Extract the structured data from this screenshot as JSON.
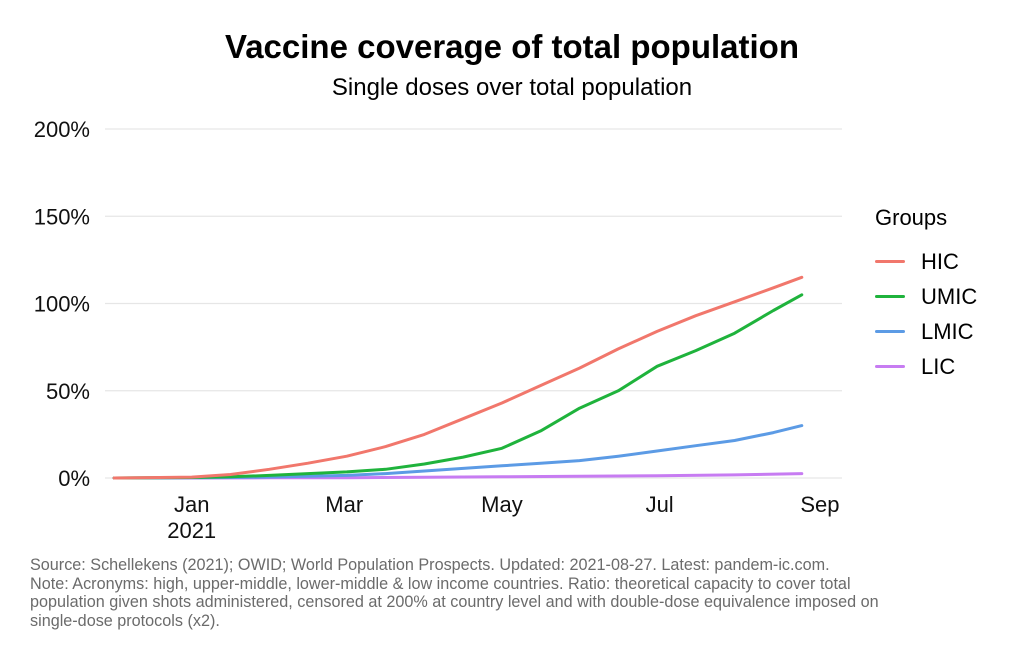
{
  "chart_data": {
    "type": "line",
    "title": "Vaccine coverage of total population",
    "subtitle": "Single doses over total population",
    "xlabel": "",
    "ylabel": "",
    "x_range_days": [
      -20,
      238
    ],
    "ylim": [
      0,
      200
    ],
    "y_ticks": [
      {
        "value": 0,
        "label": "0%"
      },
      {
        "value": 50,
        "label": "50%"
      },
      {
        "value": 100,
        "label": "100%"
      },
      {
        "value": 150,
        "label": "150%"
      },
      {
        "value": 200,
        "label": "200%"
      }
    ],
    "x_ticks": [
      {
        "day": 0,
        "lines": [
          "Jan",
          "2021"
        ]
      },
      {
        "day": 59,
        "lines": [
          "Mar"
        ]
      },
      {
        "day": 120,
        "lines": [
          "May"
        ]
      },
      {
        "day": 181,
        "lines": [
          "Jul"
        ]
      },
      {
        "day": 243,
        "lines": [
          "Sep"
        ]
      }
    ],
    "x_note": "x values are days since 2021-01-01",
    "legend_title": "Groups",
    "legend_position": "right",
    "series": [
      {
        "name": "HIC",
        "color": "#F1776C",
        "x": [
          -30,
          0,
          15,
          30,
          45,
          60,
          75,
          90,
          105,
          120,
          135,
          150,
          165,
          180,
          195,
          210,
          225,
          236
        ],
        "values": [
          0,
          0.5,
          2,
          5,
          8.5,
          12.5,
          18,
          25,
          34,
          43,
          53,
          63,
          74,
          84,
          93,
          101,
          109,
          115
        ]
      },
      {
        "name": "UMIC",
        "color": "#1FB33C",
        "x": [
          -30,
          0,
          15,
          30,
          45,
          60,
          75,
          90,
          105,
          120,
          135,
          150,
          165,
          180,
          195,
          210,
          225,
          236
        ],
        "values": [
          0,
          0.3,
          0.7,
          1.5,
          2.5,
          3.5,
          5,
          8,
          12,
          17,
          27,
          40,
          50,
          64,
          73,
          83,
          96,
          105
        ]
      },
      {
        "name": "LMIC",
        "color": "#5C9BE5",
        "x": [
          -30,
          0,
          15,
          30,
          45,
          60,
          75,
          90,
          105,
          120,
          135,
          150,
          165,
          180,
          195,
          210,
          225,
          236
        ],
        "values": [
          0,
          0.1,
          0.3,
          0.6,
          1,
          1.5,
          2.5,
          4,
          5.5,
          7,
          8.5,
          10,
          12.5,
          15.5,
          18.5,
          21.5,
          26,
          30
        ]
      },
      {
        "name": "LIC",
        "color": "#C77CF2",
        "x": [
          -30,
          0,
          30,
          60,
          90,
          120,
          150,
          180,
          210,
          236
        ],
        "values": [
          0,
          0,
          0.1,
          0.2,
          0.4,
          0.7,
          1,
          1.3,
          1.8,
          2.5
        ]
      }
    ]
  },
  "footnote": {
    "lines": [
      "Source: Schellekens (2021); OWID; World Population Prospects. Updated: 2021-08-27. Latest: pandem-ic.com.",
      "Note: Acronyms: high, upper-middle, lower-middle & low income countries. Ratio: theoretical capacity to cover total",
      "population given shots administered, censored at 200% at country level and with double-dose equivalence imposed on",
      "single-dose protocols (x2)."
    ]
  }
}
